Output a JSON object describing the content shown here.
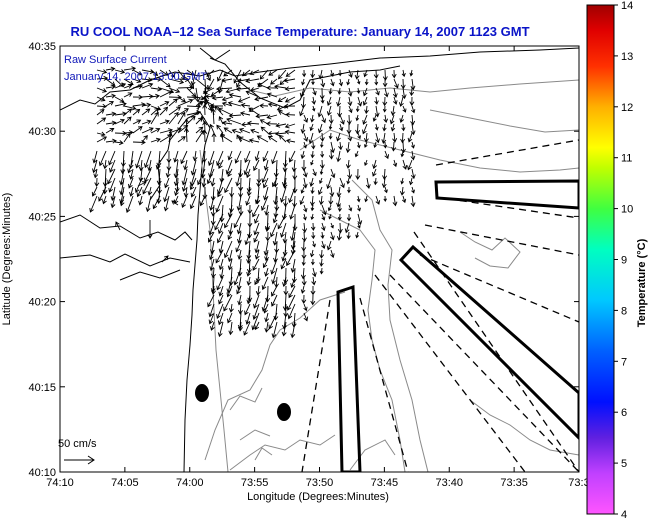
{
  "title": "RU COOL  NOAA–12  Sea Surface Temperature:  January 14, 2007 1123 GMT",
  "legend": {
    "line1": "Raw Surface Current",
    "line2": "January 14, 2007 13:00 GMT"
  },
  "scale_label": "50 cm/s",
  "axes": {
    "xlabel": "Longitude (Degrees:Minutes)",
    "ylabel": "Latitude (Degrees:Minutes)",
    "x_ticks": [
      "74:10",
      "74:05",
      "74:00",
      "73:55",
      "73:50",
      "73:45",
      "73:40",
      "73:35",
      "73:3"
    ],
    "y_ticks": [
      "40:35",
      "40:30",
      "40:25",
      "40:20",
      "40:15",
      "40:10"
    ]
  },
  "colorbar": {
    "label": "Temperature (°C)",
    "ticks": [
      "14",
      "13",
      "12",
      "11",
      "10",
      "9",
      "8",
      "7",
      "6",
      "5",
      "4"
    ],
    "min": 4,
    "max": 14
  },
  "colors": {
    "title": "#0a14c8",
    "legend_text": "#1018b8"
  }
}
